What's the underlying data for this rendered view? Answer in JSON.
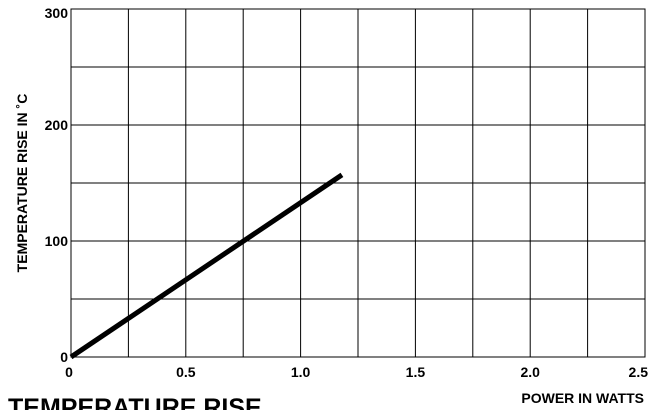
{
  "chart_data": {
    "type": "line",
    "title": "TEMPERATURE RISE",
    "xlabel": "POWER IN WATTS",
    "ylabel": "TEMPERATURE RISE IN ˚C",
    "xlim": [
      0,
      2.5
    ],
    "ylim": [
      0,
      300
    ],
    "x_ticks": [
      0,
      0.5,
      1.0,
      1.5,
      2.0,
      2.5
    ],
    "x_tick_labels": [
      "0",
      "0.5",
      "1.0",
      "1.5",
      "2.0",
      "2.5"
    ],
    "y_ticks": [
      0,
      100,
      200,
      300
    ],
    "y_tick_labels": [
      "0",
      "100",
      "200",
      "300"
    ],
    "grid": true,
    "series": [
      {
        "x": [
          0,
          1.18
        ],
        "y": [
          0,
          157
        ]
      }
    ],
    "colors": {
      "line": "#000000",
      "grid": "#000000",
      "background": "#ffffff"
    }
  }
}
